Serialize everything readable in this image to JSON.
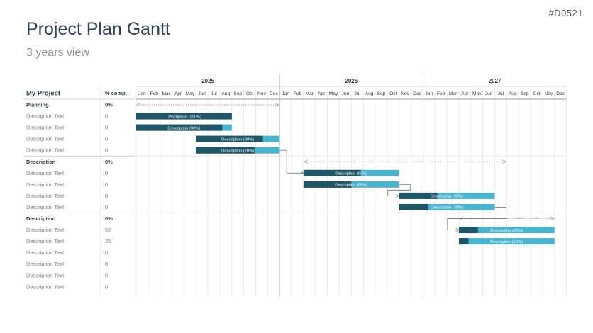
{
  "slide_id": "#D0521",
  "title": "Project Plan Gantt",
  "subtitle": "3 years view",
  "chart_data": {
    "type": "gantt",
    "header": {
      "project_label": "My Project",
      "percent_label": "% comp."
    },
    "years": [
      "2025",
      "2026",
      "2027"
    ],
    "months": [
      "Jan",
      "Feb",
      "Mar",
      "Apr",
      "May",
      "Jun",
      "Jul",
      "Aug",
      "Sep",
      "Oct",
      "Nov",
      "Dec"
    ],
    "colors": {
      "done": "#1f5565",
      "remaining": "#4ab3cd",
      "arrow": "#a6a6a6",
      "connector": "#808080",
      "grid": "#e3e6e8",
      "year_line": "#bfbfbf"
    },
    "rows": [
      {
        "label": "Planning",
        "pct": "0%",
        "group": true,
        "span": {
          "start": "2025-01",
          "end": "2025-12"
        }
      },
      {
        "label": "Description Text",
        "pct": "0",
        "bar": {
          "start": "2025-01",
          "end": "2025-08",
          "progress": 100,
          "text": "Description (100%)"
        }
      },
      {
        "label": "Description Text",
        "pct": "0",
        "bar": {
          "start": "2025-01",
          "end": "2025-08",
          "progress": 90,
          "text": "Description (90%)"
        }
      },
      {
        "label": "Description Text",
        "pct": "0",
        "bar": {
          "start": "2025-06",
          "end": "2025-12",
          "progress": 80,
          "text": "Description (80%)"
        }
      },
      {
        "label": "Description Text",
        "pct": "0",
        "bar": {
          "start": "2025-06",
          "end": "2025-12",
          "progress": 70,
          "text": "Description (70%)"
        }
      },
      {
        "label": "Description",
        "pct": "0%",
        "group": true,
        "span": {
          "start": "2026-03",
          "end": "2027-07"
        }
      },
      {
        "label": "Description Text",
        "pct": "0",
        "bar": {
          "start": "2026-03",
          "end": "2026-10",
          "progress": 60,
          "text": "Description (60%)"
        }
      },
      {
        "label": "Description Text",
        "pct": "0",
        "bar": {
          "start": "2026-03",
          "end": "2026-10",
          "progress": 50,
          "text": "Description (50%)"
        }
      },
      {
        "label": "Description Text",
        "pct": "0",
        "bar": {
          "start": "2026-11",
          "end": "2027-06",
          "progress": 40,
          "text": "Description (40%)"
        }
      },
      {
        "label": "Description Text",
        "pct": "0",
        "bar": {
          "start": "2026-11",
          "end": "2027-06",
          "progress": 30,
          "text": "Description (30%)"
        }
      },
      {
        "label": "Description",
        "pct": "0%",
        "group": true,
        "span": {
          "start": "2027-04",
          "end": "2027-11"
        }
      },
      {
        "label": "Description Text",
        "pct": "50",
        "bar": {
          "start": "2027-04",
          "end": "2027-11",
          "progress": 20,
          "text": "Description (20%)"
        }
      },
      {
        "label": "Description Text",
        "pct": "25",
        "bar": {
          "start": "2027-04",
          "end": "2027-11",
          "progress": 10,
          "text": "Description (10%)"
        }
      },
      {
        "label": "Description Text",
        "pct": "0"
      },
      {
        "label": "Description Text",
        "pct": "0"
      },
      {
        "label": "Description Text",
        "pct": "0"
      },
      {
        "label": "Description Text",
        "pct": "0"
      }
    ],
    "dependencies": [
      {
        "from_row": 4,
        "to_row": 6
      },
      {
        "from_row": 7,
        "to_row": 8
      },
      {
        "from_row": 9,
        "to_row": 11
      }
    ]
  }
}
